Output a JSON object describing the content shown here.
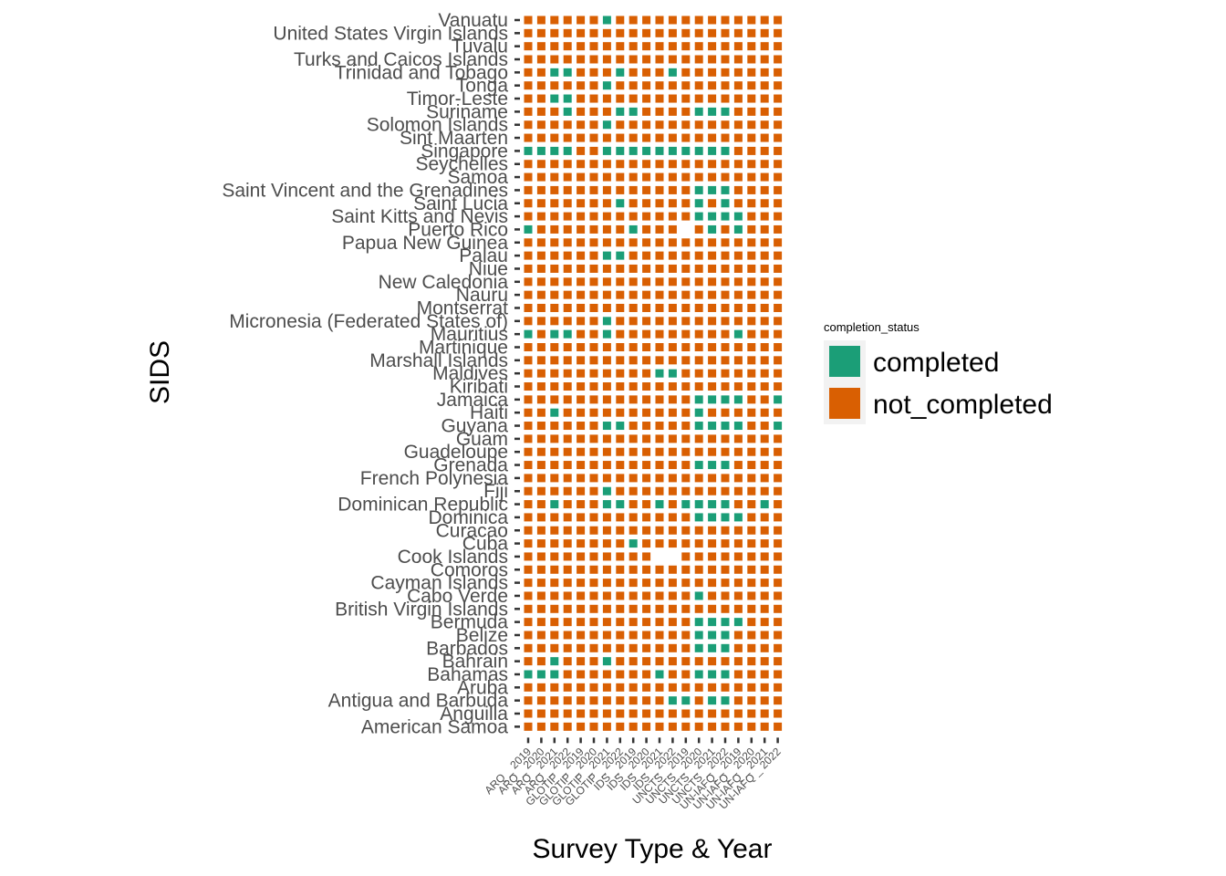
{
  "chart_data": {
    "type": "heatmap",
    "title": "",
    "xlabel": "Survey Type & Year",
    "ylabel": "SIDS",
    "legend": {
      "title": "completion_status",
      "position": "right",
      "entries": [
        {
          "key": "completed",
          "label": "completed",
          "color": "#1b9e77"
        },
        {
          "key": "not_completed",
          "label": "not_completed",
          "color": "#d95f02"
        }
      ]
    },
    "categories_x": [
      "ARQ _ 2019",
      "ARQ _ 2020",
      "ARQ _ 2021",
      "ARQ _ 2022",
      "GLOTIP _ 2019",
      "GLOTIP _ 2020",
      "GLOTIP _ 2021",
      "GLOTIP _ 2022",
      "IDS _ 2019",
      "IDS _ 2020",
      "IDS _ 2021",
      "IDS _ 2022",
      "UNCTS _ 2019",
      "UNCTS _ 2020",
      "UNCTS _ 2021",
      "UNCTS _ 2022",
      "UN-IAFQ _ 2019",
      "UN-IAFQ _ 2020",
      "UN-IAFQ _ 2021",
      "UN-IAFQ _ 2022"
    ],
    "categories_y": [
      "Vanuatu",
      "United States Virgin Islands",
      "Tuvalu",
      "Turks and Caicos Islands",
      "Trinidad and Tobago",
      "Tonga",
      "Timor-Leste",
      "Suriname",
      "Solomon Islands",
      "Sint Maarten",
      "Singapore",
      "Seychelles",
      "Samoa",
      "Saint Vincent and the Grenadines",
      "Saint Lucia",
      "Saint Kitts and Nevis",
      "Puerto Rico",
      "Papua New Guinea",
      "Palau",
      "Niue",
      "New Caledonia",
      "Nauru",
      "Montserrat",
      "Micronesia (Federated States of)",
      "Mauritius",
      "Martinique",
      "Marshall Islands",
      "Maldives",
      "Kiribati",
      "Jamaica",
      "Haiti",
      "Guyana",
      "Guam",
      "Guadeloupe",
      "Grenada",
      "French Polynesia",
      "Fiji",
      "Dominican Republic",
      "Dominica",
      "Curacao",
      "Cuba",
      "Cook Islands",
      "Comoros",
      "Cayman Islands",
      "Cabo Verde",
      "British Virgin Islands",
      "Bermuda",
      "Belize",
      "Barbados",
      "Bahrain",
      "Bahamas",
      "Aruba",
      "Antigua and Barbuda",
      "Anguilla",
      "American Samoa"
    ],
    "status_code": "C = completed, N = not_completed, - = no data",
    "status_rows": [
      "NNNNNNCNNNNNNNNNNNNN",
      "NNNNNNNNNNNNNNNNNNNN",
      "NNNNNNNNNNNNNNNNNNNN",
      "NNNNNNNNNNNNNNNNNNNN",
      "NNCCNNNCNNNCNNNNNNNN",
      "NNNNNNCNNNNNNNNNNNNN",
      "NNCCNNNNNNNNNNNNNNNN",
      "NNNCNNNCCNNNNCCCNNNN",
      "NNNNNNCNNNNNNNNNNNNN",
      "NNNNNNNNNNNNNNNNNNNN",
      "CCCCNNCCCCCCCCCCNNNN",
      "NNNNNNNNNNNNNNNNNNNN",
      "NNNNNNNNNNNNNNNNNNNN",
      "NNNNNNNNNNNNNCCCNNNN",
      "NNNNNNNCNNNNNCNCNNNN",
      "NNNNNNNNNNNNNCCCCNNN",
      "CNNNNNNNCNNN-NCNCNNN",
      "NNNNNNNNNNNNNNNNNNNN",
      "NNNNNNCCNNNNNNNNNNNN",
      "NNNNNNNNNNNNNNNNNNNN",
      "NNNNNNNNNNNNNNNNNNNN",
      "NNNNNNNNNNNNNNNNNNNN",
      "NNNNNNNNNNNNNNNNNNNN",
      "NNNNNNCNNNNNNNNNNNNN",
      "CNCCNNCNNNNNNNNNCNNN",
      "NNNNNNNNNNNNNNNNNNNN",
      "NNNNNNNNNNNNNNNNNNNN",
      "NNNNNNNNNNCCNNNNNNNN",
      "NNNNNNNNNNNNNNNNNNNN",
      "NNNNNNNNNNNNNCCCCNNC",
      "NNCNNNNNNNNNNCNNNNNN",
      "NNNNNNCCNNNNNCCCCNNC",
      "NNNNNNNNNNNNNNNNNNNN",
      "NNNNNNNNNNNNNNNNNNNN",
      "NNNNNNNNNNNNNCCCNNNN",
      "NNNNNNNNNNNNNNNNNNNN",
      "NNNNNNCNNNNNNNNNNNNN",
      "NNCNNNCCNNCNCCCCNNCN",
      "NNNNNNNNNNNNNCCCCNNN",
      "NNNNNNNNNNNNNNNNNNNN",
      "NNNNNNNNCNNNNNNNNNNN",
      "NNNNNNNNNN--NNNNNNNN",
      "NNNNNNNNNNNNNNNNNNNN",
      "NNNNNNNNNNNNNNNNNNNN",
      "NNNNNNNNNNNNNCNNNNNN",
      "NNNNNNNNNNNNNNNNNNNN",
      "NNNNNNNNNNNNNCCCCNNN",
      "NNNNNNNNNNNNNCCCNNNN",
      "NNNNNNNNNNNNNCCCNNNN",
      "NNCNNNCNNNNNNNNNNNNN",
      "CCCNNNNNNNCNNCCCNNNN",
      "NNNNNNNNNNNNNNNNNNNN",
      "NNNNNNNNNNNCCNCCNNNN",
      "NNNNNNNNNNNNNNNNNNNN",
      "NNNNNNNNNNNNNNNNNNNN"
    ]
  }
}
